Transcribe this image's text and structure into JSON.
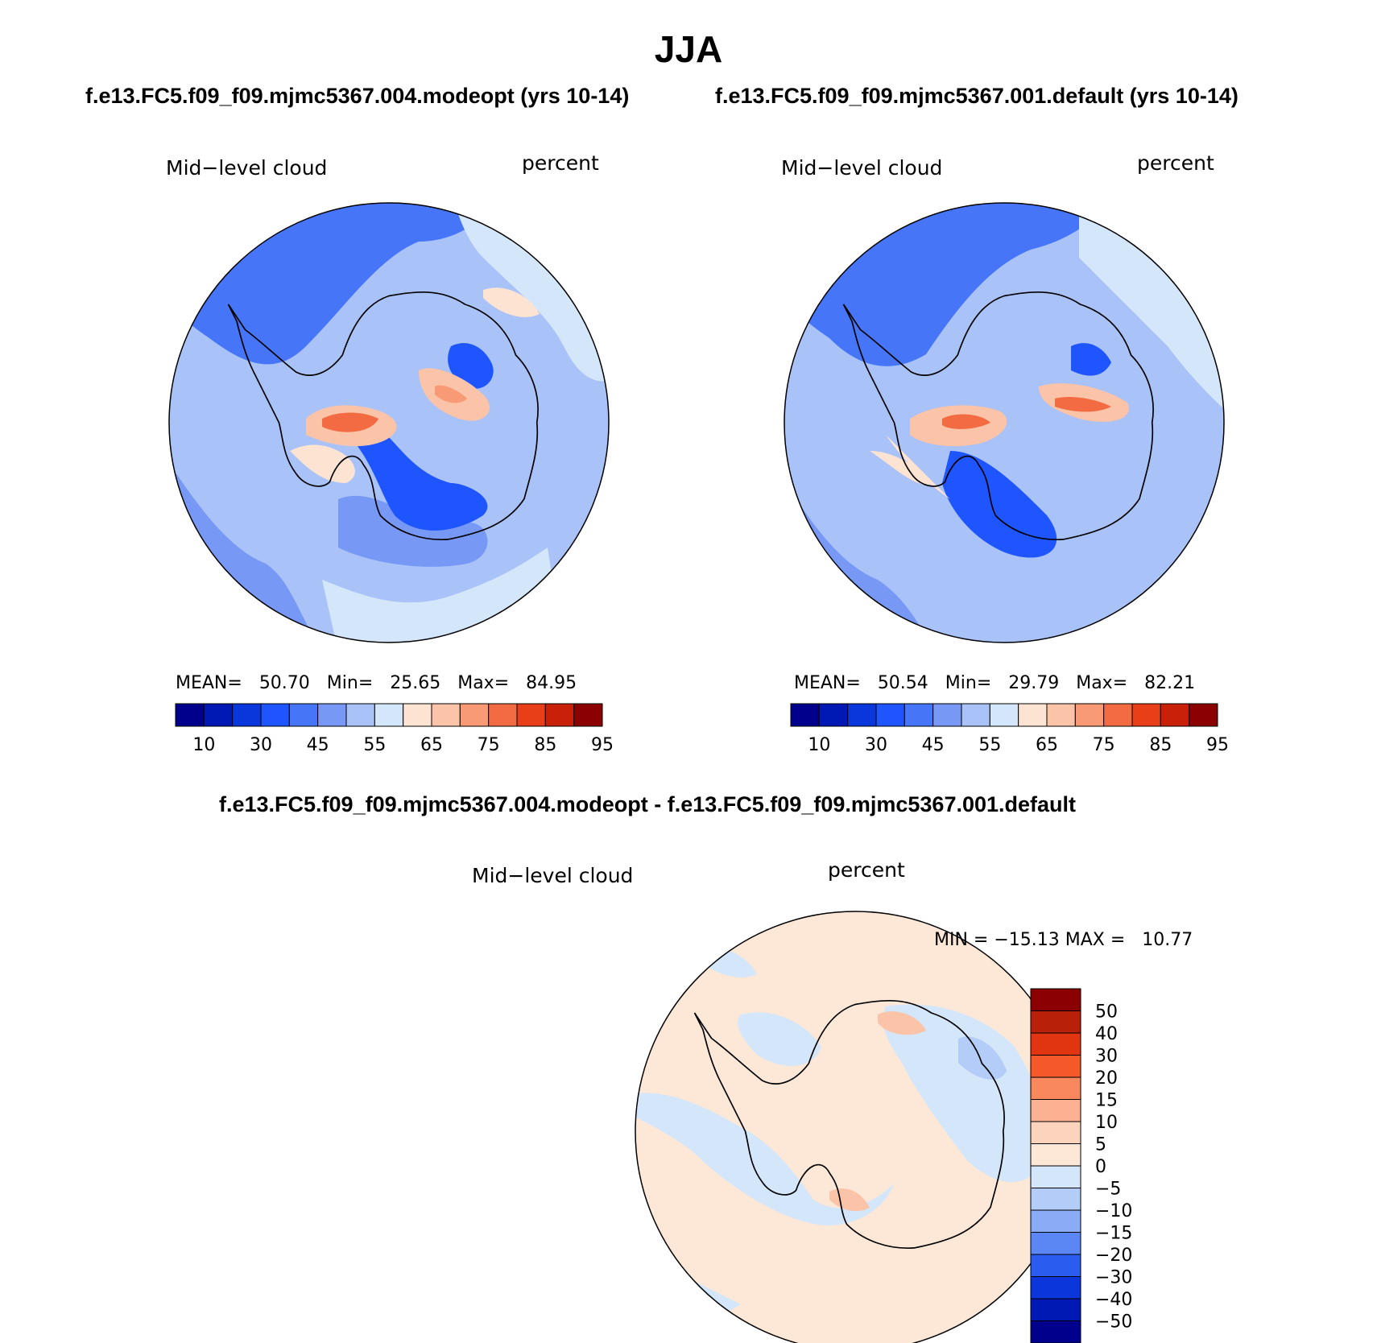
{
  "title": "JJA",
  "panels": [
    {
      "id": "modeopt",
      "case_title": "f.e13.FC5.f09_f09.mjmc5367.004.modeopt (yrs 10-14)",
      "variable": "Mid−level cloud",
      "units": "percent",
      "stats": {
        "mean_label": "MEAN=",
        "mean": "50.70",
        "min_label": "Min=",
        "min": "25.65",
        "max_label": "Max=",
        "max": "84.95"
      }
    },
    {
      "id": "default",
      "case_title": "f.e13.FC5.f09_f09.mjmc5367.001.default (yrs 10-14)",
      "variable": "Mid−level cloud",
      "units": "percent",
      "stats": {
        "mean_label": "MEAN=",
        "mean": "50.54",
        "min_label": "Min=",
        "min": "29.79",
        "max_label": "Max=",
        "max": "82.21"
      }
    }
  ],
  "diff": {
    "title": "f.e13.FC5.f09_f09.mjmc5367.004.modeopt - f.e13.FC5.f09_f09.mjmc5367.001.default",
    "variable": "Mid−level cloud",
    "units": "percent",
    "minmax": "MIN = −15.13 MAX =   10.77"
  },
  "colorbar_abs": {
    "colors": [
      "#00008c",
      "#0018b4",
      "#0a37dc",
      "#1e55ff",
      "#4676f7",
      "#7798f5",
      "#a9c2f8",
      "#d4e6f9",
      "#fde3d2",
      "#fbc3a8",
      "#f89a75",
      "#f26b42",
      "#e83f18",
      "#c9200a",
      "#8b0000"
    ],
    "tick_labels": [
      "10",
      "30",
      "45",
      "55",
      "65",
      "75",
      "85",
      "95"
    ]
  },
  "colorbar_diff": {
    "colors": [
      "#8b0000",
      "#b8200a",
      "#e03510",
      "#f5592a",
      "#f9885c",
      "#fbb192",
      "#fcd3bd",
      "#fde8d8",
      "#d4e6f9",
      "#b4cdf8",
      "#8aabf6",
      "#5a87f3",
      "#2a5cf0",
      "#0a36dc",
      "#0018b4",
      "#00008c"
    ],
    "tick_labels": [
      "50",
      "40",
      "30",
      "20",
      "15",
      "10",
      "5",
      "0",
      "−5",
      "−10",
      "−15",
      "−20",
      "−30",
      "−40",
      "−50"
    ]
  }
}
